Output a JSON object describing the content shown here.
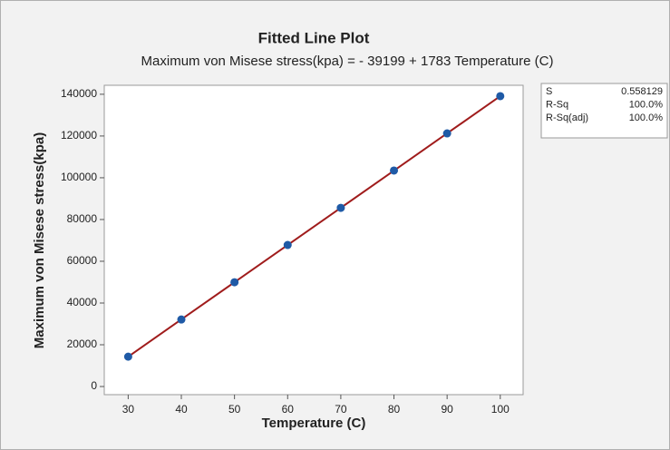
{
  "chart_data": {
    "type": "line",
    "title": "Fitted Line Plot",
    "subtitle": "Maximum von Misese stress(kpa) = - 39199 + 1783 Temperature (C)",
    "x_label": "Temperature (C)",
    "y_label": "Maximum von Misese stress(kpa)",
    "x": [
      30,
      40,
      50,
      60,
      70,
      80,
      90,
      100
    ],
    "series": [
      {
        "style": "line",
        "color": "#a01c1c",
        "values": [
          14291,
          32121,
          49951,
          67781,
          85611,
          103441,
          121271,
          139101
        ]
      },
      {
        "style": "marker",
        "color": "#1f5aa6",
        "values": [
          14300,
          32100,
          49950,
          67800,
          85600,
          103450,
          121250,
          139100
        ]
      }
    ],
    "xlim": [
      25.5,
      104.3
    ],
    "xticks": [
      30,
      40,
      50,
      60,
      70,
      80,
      90,
      100
    ],
    "ylim": [
      -3900,
      144300
    ],
    "yticks": [
      0,
      20000,
      40000,
      60000,
      80000,
      100000,
      120000,
      140000
    ],
    "stats": [
      [
        "S",
        "0.558129"
      ],
      [
        "R-Sq",
        "100.0%"
      ],
      [
        "R-Sq(adj)",
        "100.0%"
      ]
    ]
  }
}
